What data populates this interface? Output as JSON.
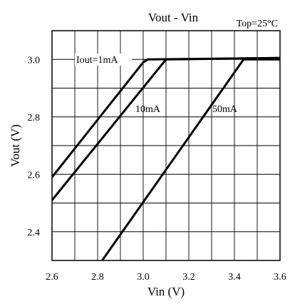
{
  "chart_data": {
    "type": "line",
    "title": "Vout - Vin",
    "annotation": "Top=25°C",
    "xlabel": "Vin (V)",
    "ylabel": "Vout (V)",
    "xlim": [
      2.6,
      3.6
    ],
    "ylim": [
      2.3,
      3.1
    ],
    "grid": true,
    "xticks": [
      "2.6",
      "2.8",
      "3.0",
      "3.2",
      "3.4",
      "3.6"
    ],
    "yticks": [
      "2.4",
      "2.6",
      "2.8",
      "3.0"
    ],
    "series": [
      {
        "name": "Iout=1mA",
        "x": [
          2.6,
          3.0,
          3.02,
          3.6
        ],
        "y": [
          2.59,
          2.99,
          3.0,
          3.005
        ]
      },
      {
        "name": "10mA",
        "x": [
          2.6,
          3.1,
          3.6
        ],
        "y": [
          2.51,
          3.0,
          3.005
        ]
      },
      {
        "name": "50mA",
        "x": [
          2.82,
          3.44,
          3.6
        ],
        "y": [
          2.3,
          3.0,
          3.0
        ]
      }
    ]
  }
}
